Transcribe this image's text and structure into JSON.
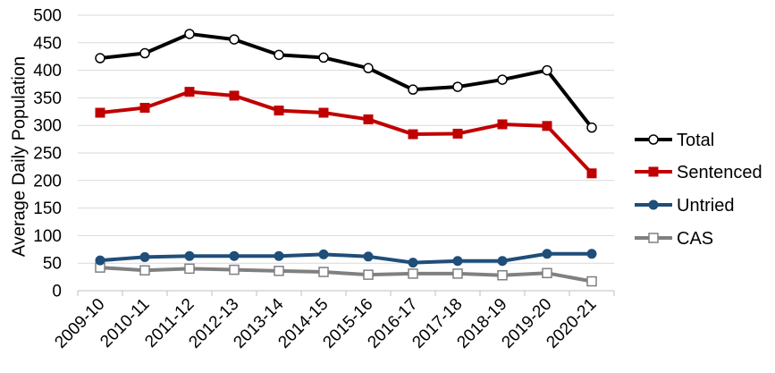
{
  "chart_data": {
    "type": "line",
    "ylabel": "Average Daily Population",
    "xlabel": "",
    "ylim": [
      0,
      500
    ],
    "y_ticks": [
      "0",
      "50",
      "100",
      "150",
      "200",
      "250",
      "300",
      "350",
      "400",
      "450",
      "500"
    ],
    "grid": "horizontal",
    "legend_position": "right",
    "categories": [
      "2009-10",
      "2010-11",
      "2011-12",
      "2012-13",
      "2013-14",
      "2014-15",
      "2015-16",
      "2016-17",
      "2017-18",
      "2018-19",
      "2019-20",
      "2020-21"
    ],
    "series": [
      {
        "name": "Total",
        "color": "#000000",
        "marker": "circle-open",
        "values": [
          422,
          431,
          466,
          456,
          428,
          423,
          404,
          365,
          370,
          383,
          400,
          296
        ]
      },
      {
        "name": "Sentenced",
        "color": "#c00000",
        "marker": "square-filled",
        "values": [
          323,
          332,
          361,
          354,
          327,
          323,
          311,
          284,
          285,
          302,
          299,
          213
        ]
      },
      {
        "name": "Untried",
        "color": "#1f4e79",
        "marker": "circle-filled",
        "values": [
          55,
          61,
          63,
          63,
          63,
          66,
          62,
          51,
          54,
          54,
          67,
          67
        ]
      },
      {
        "name": "CAS",
        "color": "#808080",
        "marker": "square-open",
        "values": [
          42,
          37,
          40,
          38,
          36,
          34,
          29,
          31,
          31,
          28,
          32,
          17
        ]
      }
    ]
  }
}
